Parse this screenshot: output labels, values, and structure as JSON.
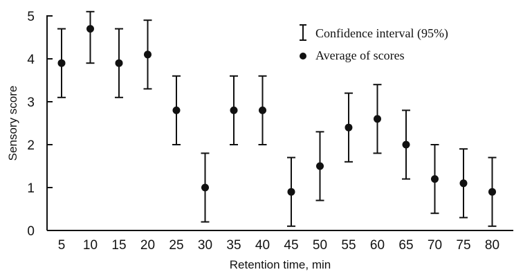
{
  "chart_data": {
    "type": "scatter",
    "title": "",
    "xlabel": "Retention time, min",
    "ylabel": "Sensory score",
    "ylim": [
      0,
      5
    ],
    "yticks": [
      "0",
      "1",
      "2",
      "3",
      "4",
      "5"
    ],
    "xticks": [
      "5",
      "10",
      "15",
      "20",
      "25",
      "30",
      "35",
      "40",
      "45",
      "50",
      "55",
      "60",
      "65",
      "70",
      "75",
      "80"
    ],
    "grid": false,
    "legend_position": "top-right",
    "legend": {
      "ci_label": "Confidence interval (95%)",
      "mean_label": "Average of scores"
    },
    "series": [
      {
        "name": "Average of scores",
        "x": [
          5,
          10,
          15,
          20,
          25,
          30,
          35,
          40,
          45,
          50,
          55,
          60,
          65,
          70,
          75,
          80
        ],
        "y": [
          3.9,
          4.7,
          3.9,
          4.1,
          2.8,
          1.0,
          2.8,
          2.8,
          0.9,
          1.5,
          2.4,
          2.6,
          2.0,
          1.2,
          1.1,
          0.9
        ],
        "ci_low": [
          3.1,
          3.9,
          3.1,
          3.3,
          2.0,
          0.2,
          2.0,
          2.0,
          0.1,
          0.7,
          1.6,
          1.8,
          1.2,
          0.4,
          0.3,
          0.1
        ],
        "ci_high": [
          4.7,
          5.1,
          4.7,
          4.9,
          3.6,
          1.8,
          3.6,
          3.6,
          1.7,
          2.3,
          3.2,
          3.4,
          2.8,
          2.0,
          1.9,
          1.7
        ]
      }
    ],
    "colors": {
      "marker": "#111111",
      "axis": "#111111"
    }
  }
}
